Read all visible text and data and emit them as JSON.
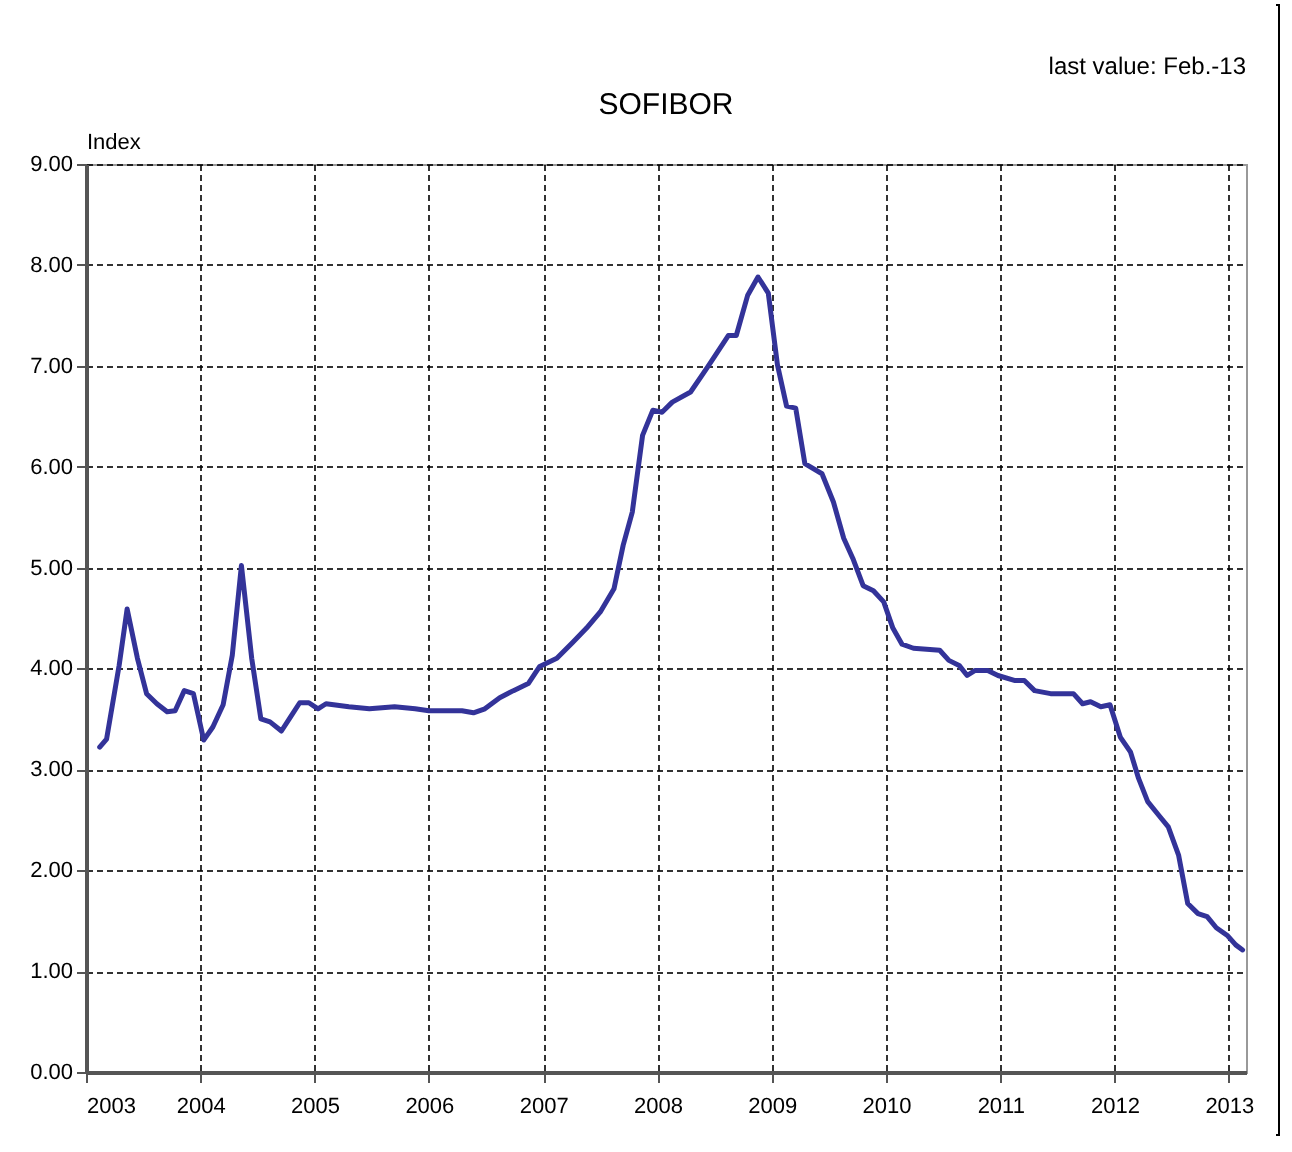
{
  "chart_data": {
    "type": "line",
    "title": "SOFIBOR",
    "ylabel": "Index",
    "annotations": [
      "last value: Feb.-13"
    ],
    "x": [
      2003.12,
      2003.18,
      2003.29,
      2003.36,
      2003.45,
      2003.53,
      2003.62,
      2003.71,
      2003.78,
      2003.86,
      2003.94,
      2004.03,
      2004.11,
      2004.2,
      2004.28,
      2004.36,
      2004.45,
      2004.53,
      2004.61,
      2004.71,
      2004.79,
      2004.87,
      2004.95,
      2005.03,
      2005.1,
      2005.3,
      2005.48,
      2005.7,
      2005.88,
      2006.0,
      2006.29,
      2006.39,
      2006.49,
      2006.62,
      2006.74,
      2006.87,
      2006.97,
      2007.12,
      2007.26,
      2007.38,
      2007.5,
      2007.62,
      2007.7,
      2007.78,
      2007.87,
      2007.96,
      2008.04,
      2008.13,
      2008.29,
      2008.44,
      2008.62,
      2008.69,
      2008.79,
      2008.88,
      2008.97,
      2009.05,
      2009.13,
      2009.21,
      2009.29,
      2009.44,
      2009.54,
      2009.63,
      2009.71,
      2009.8,
      2009.89,
      2009.98,
      2010.06,
      2010.14,
      2010.24,
      2010.47,
      2010.55,
      2010.64,
      2010.71,
      2010.78,
      2010.89,
      2010.98,
      2011.13,
      2011.21,
      2011.3,
      2011.44,
      2011.64,
      2011.72,
      2011.79,
      2011.88,
      2011.96,
      2012.05,
      2012.14,
      2012.21,
      2012.29,
      2012.39,
      2012.47,
      2012.56,
      2012.64,
      2012.73,
      2012.81,
      2012.89,
      2012.99,
      2013.06,
      2013.12
    ],
    "series": [
      {
        "color": "#333399",
        "values": [
          3.22,
          3.3,
          4.03,
          4.59,
          4.1,
          3.75,
          3.65,
          3.57,
          3.58,
          3.78,
          3.75,
          3.29,
          3.42,
          3.64,
          4.13,
          5.02,
          4.1,
          3.5,
          3.47,
          3.38,
          3.52,
          3.66,
          3.66,
          3.6,
          3.65,
          3.62,
          3.6,
          3.62,
          3.6,
          3.58,
          3.58,
          3.56,
          3.6,
          3.71,
          3.78,
          3.85,
          4.02,
          4.1,
          4.26,
          4.4,
          4.56,
          4.79,
          5.22,
          5.55,
          6.31,
          6.56,
          6.54,
          6.64,
          6.74,
          6.99,
          7.3,
          7.3,
          7.7,
          7.88,
          7.72,
          7.01,
          6.6,
          6.58,
          6.03,
          5.93,
          5.65,
          5.29,
          5.09,
          4.82,
          4.77,
          4.66,
          4.4,
          4.24,
          4.2,
          4.18,
          4.08,
          4.03,
          3.93,
          3.98,
          3.98,
          3.93,
          3.88,
          3.88,
          3.78,
          3.75,
          3.75,
          3.65,
          3.67,
          3.62,
          3.64,
          3.32,
          3.17,
          2.91,
          2.68,
          2.54,
          2.43,
          2.15,
          1.67,
          1.57,
          1.54,
          1.43,
          1.35,
          1.26,
          1.21
        ]
      }
    ],
    "xlim": [
      2003,
      2013.15
    ],
    "xticks": [
      2003,
      2004,
      2005,
      2006,
      2007,
      2008,
      2009,
      2010,
      2011,
      2012,
      2013
    ],
    "ylim": [
      0,
      9
    ],
    "yticks": [
      {
        "value": 0,
        "label": "0.00"
      },
      {
        "value": 1,
        "label": "1.00"
      },
      {
        "value": 2,
        "label": "2.00"
      },
      {
        "value": 3,
        "label": "3.00"
      },
      {
        "value": 4,
        "label": "4.00"
      },
      {
        "value": 5,
        "label": "5.00"
      },
      {
        "value": 6,
        "label": "6.00"
      },
      {
        "value": 7,
        "label": "7.00"
      },
      {
        "value": 8,
        "label": "8.00"
      },
      {
        "value": 9,
        "label": "9.00"
      }
    ],
    "grid": true,
    "line_style": "solid",
    "marker": "none"
  }
}
